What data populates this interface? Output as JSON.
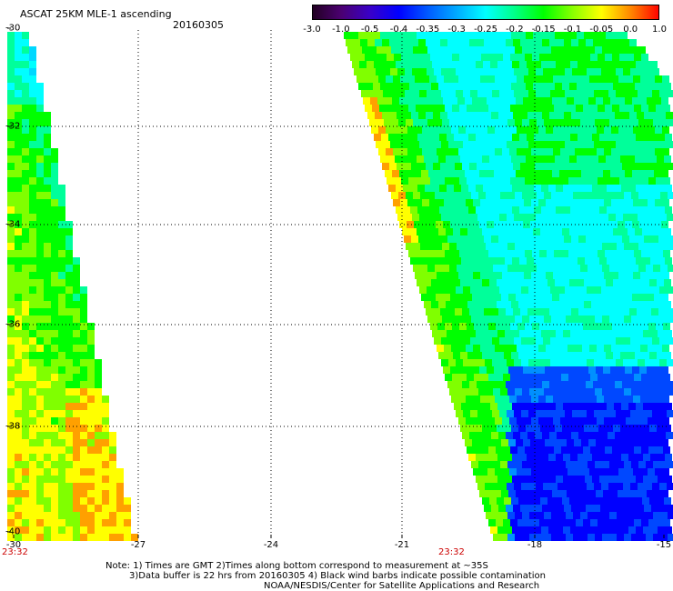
{
  "header": {
    "title": "ASCAT 25KM MLE-1 ascending",
    "date": "20160305"
  },
  "colorbar": {
    "labels": [
      "-3.0",
      "-1.0",
      "-0.5",
      "-0.4",
      "-0.35",
      "-0.3",
      "-0.25",
      "-0.2",
      "-0.15",
      "-0.1",
      "-0.05",
      "0.0",
      "1.0"
    ],
    "colors": [
      "#200020",
      "#4b0070",
      "#3a00c8",
      "#0000ff",
      "#005aff",
      "#00aaff",
      "#00ffff",
      "#00ff88",
      "#00ff00",
      "#88ff00",
      "#ffff00",
      "#ff8800",
      "#ff0000"
    ]
  },
  "map": {
    "lon_ticks": [
      "-30",
      "-27",
      "-24",
      "-21",
      "-18",
      "-15"
    ],
    "lat_ticks": [
      "-30",
      "-32",
      "-34",
      "-36",
      "-38",
      "-40"
    ],
    "pass_times": [
      "23:32",
      "23:32"
    ]
  },
  "notes": {
    "line1": "Note: 1) Times are GMT 2)Times along bottom correspond to measurement at ~35S",
    "line2": "3)Data buffer is 22 hrs from 20160305 4) Black wind barbs indicate possible contamination",
    "line3": "NOAA/NESDIS/Center for Satellite Applications and Research"
  }
}
